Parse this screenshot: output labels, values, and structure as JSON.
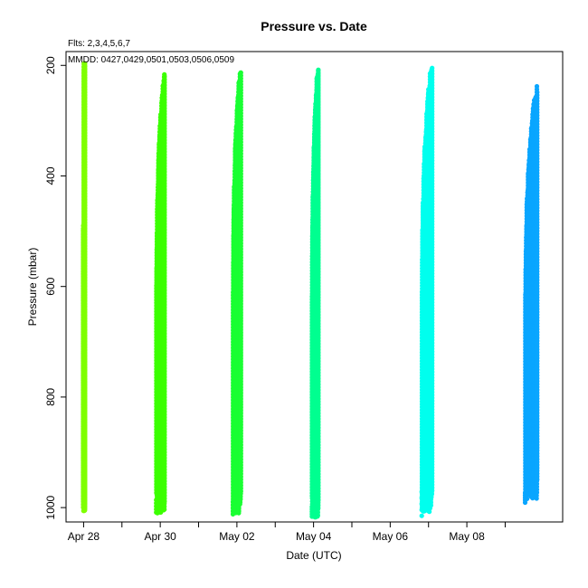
{
  "chart_data": {
    "type": "scatter",
    "title": "Pressure  vs. Date",
    "subtitle_lines": [
      "Flts: 2,3,4,5,6,7",
      "MMDD: 0427,0429,0501,0503,0506,0509"
    ],
    "xlabel": "Date (UTC)",
    "ylabel": "Pressure (mbar)",
    "x_ticks": [
      {
        "date": "2008-04-28",
        "label": "Apr 28"
      },
      {
        "date": "2008-04-29",
        "label": ""
      },
      {
        "date": "2008-04-30",
        "label": "Apr 30"
      },
      {
        "date": "2008-05-01",
        "label": ""
      },
      {
        "date": "2008-05-02",
        "label": "May 02"
      },
      {
        "date": "2008-05-03",
        "label": ""
      },
      {
        "date": "2008-05-04",
        "label": "May 04"
      },
      {
        "date": "2008-05-05",
        "label": ""
      },
      {
        "date": "2008-05-06",
        "label": "May 06"
      },
      {
        "date": "2008-05-07",
        "label": ""
      },
      {
        "date": "2008-05-08",
        "label": "May 08"
      },
      {
        "date": "2008-05-09",
        "label": ""
      }
    ],
    "xlim": [
      "2008-04-27T13:00",
      "2008-05-10T12:00"
    ],
    "y_ticks": [
      200,
      400,
      600,
      800,
      1000
    ],
    "ylim": [
      1026,
      175
    ],
    "y_reversed": true,
    "grid": false,
    "legend": "none",
    "series": [
      {
        "flight": "2",
        "date": "2008-04-27",
        "color": "#7fff00",
        "start": "2008-04-27T23:45",
        "end": "2008-04-28T00:50",
        "min_pressure": 197,
        "max_pressure": 1008
      },
      {
        "flight": "3",
        "date": "2008-04-29",
        "color": "#3cff00",
        "start": "2008-04-29T21:30",
        "end": "2008-04-30T02:40",
        "min_pressure": 215,
        "max_pressure": 1010
      },
      {
        "flight": "4",
        "date": "2008-05-01",
        "color": "#1aff33",
        "start": "2008-05-01T21:30",
        "end": "2008-05-02T02:30",
        "min_pressure": 203,
        "max_pressure": 1010
      },
      {
        "flight": "5",
        "date": "2008-05-03",
        "color": "#00ff90",
        "start": "2008-05-03T23:00",
        "end": "2008-05-04T03:00",
        "min_pressure": 197,
        "max_pressure": 1018
      },
      {
        "flight": "6",
        "date": "2008-05-06",
        "color": "#00ffee",
        "start": "2008-05-06T19:45",
        "end": "2008-05-07T02:15",
        "min_pressure": 197,
        "max_pressure": 1008
      },
      {
        "flight": "7",
        "date": "2008-05-09",
        "color": "#0aa6ff",
        "start": "2008-05-09T12:30",
        "end": "2008-05-09T20:00",
        "min_pressure": 238,
        "max_pressure": 985
      }
    ]
  }
}
